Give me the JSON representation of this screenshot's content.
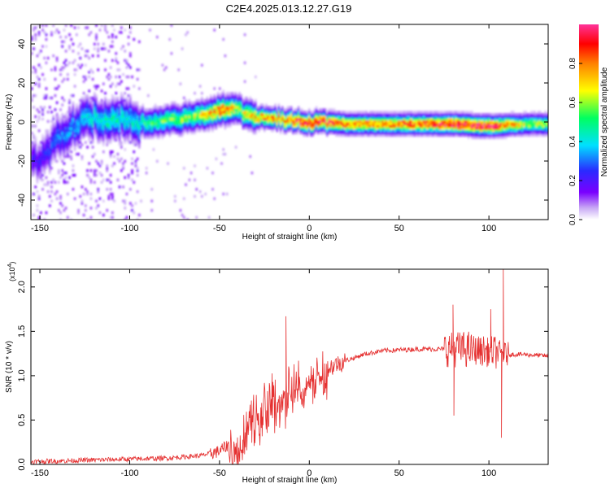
{
  "title": "C2E4.2025.013.12.27.G19",
  "colors": {
    "background": "#ffffff",
    "axis": "#000000",
    "snr_line": "#e53030",
    "colormap": [
      "#ffffff",
      "#d9c8f5",
      "#b07cf0",
      "#7a00ff",
      "#2a2aff",
      "#00e0ff",
      "#00ff60",
      "#ffff00",
      "#ff8000",
      "#ff0000",
      "#ff33a0"
    ]
  },
  "chart_data": [
    {
      "type": "heatmap",
      "xlabel": "Height of straight line (km)",
      "ylabel": "Frequency (Hz)",
      "xlim": [
        -155,
        133
      ],
      "ylim": [
        -50,
        50
      ],
      "xticks": [
        -150,
        -100,
        -50,
        0,
        50,
        100
      ],
      "xtick_labels": [
        "-150",
        "-100",
        "-50",
        "0",
        "50",
        "100"
      ],
      "yticks": [
        -40,
        -20,
        0,
        20,
        40
      ],
      "ytick_labels": [
        "-40",
        "-20",
        "0",
        "20",
        "40"
      ],
      "colorbar": {
        "label": "Normalized spectral amplitude",
        "range": [
          0,
          1
        ],
        "ticks": [
          0,
          0.2,
          0.4,
          0.6,
          0.8
        ],
        "tick_labels": [
          "0.0",
          "0.2",
          "0.4",
          "0.6",
          "0.8"
        ]
      },
      "ridge": {
        "description": "Doppler frequency track",
        "x": [
          -150,
          -140,
          -130,
          -120,
          -110,
          -100,
          -90,
          -80,
          -70,
          -60,
          -50,
          -45,
          -40,
          -35,
          -30,
          -20,
          -10,
          0,
          10,
          20,
          40,
          60,
          80,
          100,
          120,
          133
        ],
        "y": [
          -20,
          -8,
          0,
          2,
          2,
          0,
          0,
          1,
          2,
          4,
          6,
          7,
          6,
          4,
          3,
          2,
          1,
          0,
          0,
          -1,
          -1,
          -1,
          -1,
          -2,
          -1,
          -1
        ],
        "peak_amplitude": [
          0.2,
          0.3,
          0.35,
          0.4,
          0.45,
          0.4,
          0.5,
          0.55,
          0.6,
          0.65,
          0.85,
          0.75,
          0.6,
          0.7,
          0.75,
          0.8,
          0.85,
          0.95,
          0.9,
          0.8,
          0.8,
          0.85,
          0.95,
          0.95,
          0.6,
          0.6
        ]
      }
    },
    {
      "type": "line",
      "xlabel": "Height of straight line (km)",
      "ylabel": "SNR (10 * v/v)",
      "y_multiplier_label": "(x10",
      "y_multiplier_exp": "4",
      "y_multiplier_close": ")",
      "xlim": [
        -155,
        133
      ],
      "ylim": [
        0,
        2.2
      ],
      "xticks": [
        -150,
        -100,
        -50,
        0,
        50,
        100
      ],
      "xtick_labels": [
        "-150",
        "-100",
        "-50",
        "0",
        "50",
        "100"
      ],
      "yticks": [
        0,
        0.5,
        1.0,
        1.5,
        2.0
      ],
      "ytick_labels": [
        "0.0",
        "0.5",
        "1.0",
        "1.5",
        "2.0"
      ],
      "series": [
        {
          "envelope_x": [
            -155,
            -120,
            -100,
            -80,
            -60,
            -50,
            -45,
            -40,
            -35,
            -30,
            -25,
            -20,
            -15,
            -10,
            -5,
            0,
            5,
            10,
            15,
            20,
            25,
            30,
            40,
            50,
            60,
            70,
            75,
            80,
            85,
            90,
            95,
            100,
            105,
            108,
            110,
            120,
            133
          ],
          "envelope_y": [
            0.03,
            0.05,
            0.06,
            0.07,
            0.1,
            0.15,
            0.22,
            0.35,
            0.5,
            0.6,
            0.72,
            0.78,
            0.82,
            0.92,
            0.98,
            1.02,
            1.05,
            1.08,
            1.13,
            1.17,
            1.2,
            1.24,
            1.28,
            1.29,
            1.3,
            1.3,
            1.3,
            1.3,
            1.3,
            1.29,
            1.28,
            1.27,
            1.26,
            1.25,
            1.24,
            1.24,
            1.22
          ],
          "spikes": [
            {
              "x": -13,
              "y": 1.67
            },
            {
              "x": 80,
              "y": 1.8
            },
            {
              "x": 80.5,
              "y": 0.55
            },
            {
              "x": 101,
              "y": 1.75
            },
            {
              "x": 107,
              "y": 0.3
            },
            {
              "x": 108,
              "y": 2.2
            }
          ]
        }
      ]
    }
  ]
}
